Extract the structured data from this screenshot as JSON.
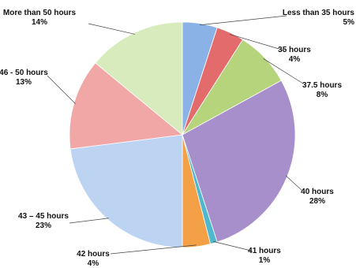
{
  "chart_data": {
    "type": "pie",
    "title": "",
    "slices": [
      {
        "label": "Less than 35 hours",
        "value": 5,
        "value_label": "5%",
        "color": "#8bb2e6"
      },
      {
        "label": "35 hours",
        "value": 4,
        "value_label": "4%",
        "color": "#e36b6b"
      },
      {
        "label": "37.5 hours",
        "value": 8,
        "value_label": "8%",
        "color": "#b6d47c"
      },
      {
        "label": "40 hours",
        "value": 28,
        "value_label": "28%",
        "color": "#a78fcc"
      },
      {
        "label": "41 hours",
        "value": 1,
        "value_label": "1%",
        "color": "#4fb8cf"
      },
      {
        "label": "42 hours",
        "value": 4,
        "value_label": "4%",
        "color": "#f4a046"
      },
      {
        "label": "43 – 45 hours",
        "value": 23,
        "value_label": "23%",
        "color": "#bcd3f2"
      },
      {
        "label": "46 - 50 hours",
        "value": 13,
        "value_label": "13%",
        "color": "#f0a7a6"
      },
      {
        "label": "More than 50 hours",
        "value": 14,
        "value_label": "14%",
        "color": "#d8ebbd"
      }
    ]
  }
}
